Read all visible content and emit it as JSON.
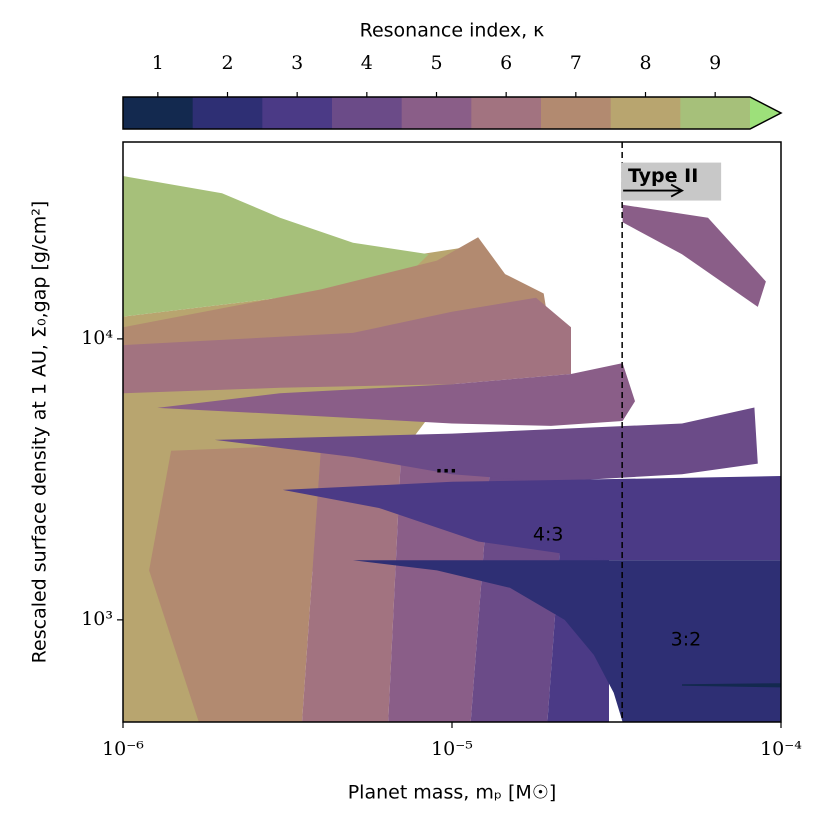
{
  "chart_data": {
    "type": "region-map",
    "xlabel": "Planet mass, mₚ [M☉]",
    "ylabel": "Rescaled surface density at 1 AU, Σ₀,gap [g/cm²]",
    "xscale": "log",
    "yscale": "log",
    "xlim": [
      1e-06,
      0.0001
    ],
    "ylim": [
      433,
      50200
    ],
    "xticks": [
      {
        "value": 1e-06,
        "label": "10⁻⁶"
      },
      {
        "value": 1e-05,
        "label": "10⁻⁵"
      },
      {
        "value": 0.0001,
        "label": "10⁻⁴"
      }
    ],
    "yticks": [
      {
        "value": 1000,
        "label": "10³"
      },
      {
        "value": 10000,
        "label": "10⁴"
      }
    ],
    "colorbar": {
      "title": "Resonance index, κ",
      "ticks": [
        1,
        2,
        3,
        4,
        5,
        6,
        7,
        8,
        9
      ],
      "colors": [
        "#13294f",
        "#2e2f74",
        "#4b3a86",
        "#6b4b88",
        "#8a5e88",
        "#a27380",
        "#b28a70",
        "#b8a56f",
        "#a6c07a"
      ],
      "extend_color": "#9de07a"
    },
    "regions": [
      {
        "kappa": 8,
        "points": [
          [
            1e-06,
            433
          ],
          [
            1e-06,
            12000
          ],
          [
            3e-06,
            14000
          ],
          [
            8e-06,
            20000
          ],
          [
            1.05e-05,
            21000
          ],
          [
            1.2e-05,
            9000
          ],
          [
            1.7e-06,
            433
          ]
        ]
      },
      {
        "kappa": 9,
        "points": [
          [
            1e-06,
            38000
          ],
          [
            2e-06,
            33000
          ],
          [
            3e-06,
            27000
          ],
          [
            5e-06,
            22000
          ],
          [
            8.5e-06,
            20000
          ],
          [
            7e-06,
            16000
          ],
          [
            3e-06,
            14000
          ],
          [
            1e-06,
            12000
          ]
        ]
      },
      {
        "kappa": 7,
        "points": [
          [
            1.7e-06,
            433
          ],
          [
            1.2e-06,
            1500
          ],
          [
            1.4e-06,
            4000
          ],
          [
            4e-06,
            4200
          ],
          [
            3.5e-06,
            433
          ]
        ]
      },
      {
        "kappa": 6,
        "points": [
          [
            3.5e-06,
            433
          ],
          [
            4e-06,
            4200
          ],
          [
            7e-06,
            3900
          ],
          [
            6.4e-06,
            433
          ]
        ]
      },
      {
        "kappa": 5,
        "points": [
          [
            6.4e-06,
            433
          ],
          [
            7e-06,
            3900
          ],
          [
            1.3e-05,
            3300
          ],
          [
            1.14e-05,
            433
          ]
        ]
      },
      {
        "kappa": 4,
        "points": [
          [
            1.14e-05,
            433
          ],
          [
            1.3e-05,
            3300
          ],
          [
            2.2e-05,
            3100
          ],
          [
            1.95e-05,
            433
          ]
        ]
      },
      {
        "kappa": 3,
        "points": [
          [
            1.95e-05,
            433
          ],
          [
            2.2e-05,
            3100
          ],
          [
            3e-05,
            2000
          ],
          [
            3e-05,
            433
          ]
        ]
      },
      {
        "kappa": 7,
        "points": [
          [
            1e-06,
            9500
          ],
          [
            1e-06,
            11000
          ],
          [
            4e-06,
            15000
          ],
          [
            9e-06,
            19000
          ],
          [
            1.2e-05,
            23000
          ],
          [
            1.45e-05,
            17000
          ],
          [
            1.9e-05,
            14500
          ],
          [
            2e-05,
            10000
          ]
        ]
      },
      {
        "kappa": 6,
        "points": [
          [
            1e-06,
            6400
          ],
          [
            1e-06,
            9500
          ],
          [
            5e-06,
            10500
          ],
          [
            1e-05,
            12500
          ],
          [
            1.8e-05,
            14000
          ],
          [
            2.3e-05,
            11000
          ],
          [
            2.3e-05,
            7500
          ],
          [
            1e-05,
            6900
          ],
          [
            3e-06,
            6700
          ]
        ]
      },
      {
        "kappa": 5,
        "points": [
          [
            1.27e-06,
            5680
          ],
          [
            3e-06,
            6400
          ],
          [
            1e-05,
            6900
          ],
          [
            2.3e-05,
            7500
          ],
          [
            3.3e-05,
            8200
          ],
          [
            3.6e-05,
            6000
          ],
          [
            3.3e-05,
            5100
          ],
          [
            2e-05,
            4900
          ],
          [
            1e-05,
            5000
          ],
          [
            3e-06,
            5400
          ]
        ]
      },
      {
        "kappa": 4,
        "points": [
          [
            1.9e-06,
            4370
          ],
          [
            1e-05,
            4600
          ],
          [
            5e-05,
            5000
          ],
          [
            8.3e-05,
            5700
          ],
          [
            8.5e-05,
            3600
          ],
          [
            5e-05,
            3300
          ],
          [
            2e-05,
            3100
          ],
          [
            1e-05,
            3300
          ],
          [
            5e-06,
            3800
          ]
        ]
      },
      {
        "kappa": 3,
        "points": [
          [
            3.06e-06,
            2900
          ],
          [
            1e-05,
            3100
          ],
          [
            5e-05,
            3200
          ],
          [
            0.0001,
            3250
          ],
          [
            0.0001,
            1630
          ],
          [
            3e-05,
            1630
          ],
          [
            1.2e-05,
            1900
          ],
          [
            6e-06,
            2500
          ]
        ]
      },
      {
        "kappa": 2,
        "points": [
          [
            5e-06,
            1630
          ],
          [
            0.0001,
            1630
          ],
          [
            0.0001,
            433
          ],
          [
            3.3e-05,
            433
          ],
          [
            3.1e-05,
            550
          ],
          [
            2.7e-05,
            750
          ],
          [
            2.2e-05,
            1000
          ],
          [
            1.5e-05,
            1300
          ],
          [
            9e-06,
            1500
          ]
        ]
      },
      {
        "kappa": 1,
        "points": [
          [
            5e-05,
            590
          ],
          [
            0.0001,
            595
          ],
          [
            0.0001,
            575
          ],
          [
            5e-05,
            583
          ]
        ]
      },
      {
        "kappa": 5,
        "points": [
          [
            3.3e-05,
            30000
          ],
          [
            6e-05,
            27000
          ],
          [
            9e-05,
            16000
          ],
          [
            8.5e-05,
            13000
          ],
          [
            5e-05,
            20000
          ],
          [
            3.3e-05,
            26000
          ]
        ]
      }
    ],
    "vline_x": 3.29e-05,
    "type_ii_label": {
      "text": "Type II",
      "x": 4.7e-05,
      "y": 36000
    },
    "annotations": [
      {
        "text": "...",
        "x": 9.6e-06,
        "y": 3500
      },
      {
        "text": "4:3",
        "x": 1.96e-05,
        "y": 2005
      },
      {
        "text": "3:2",
        "x": 5.14e-05,
        "y": 849
      }
    ]
  }
}
